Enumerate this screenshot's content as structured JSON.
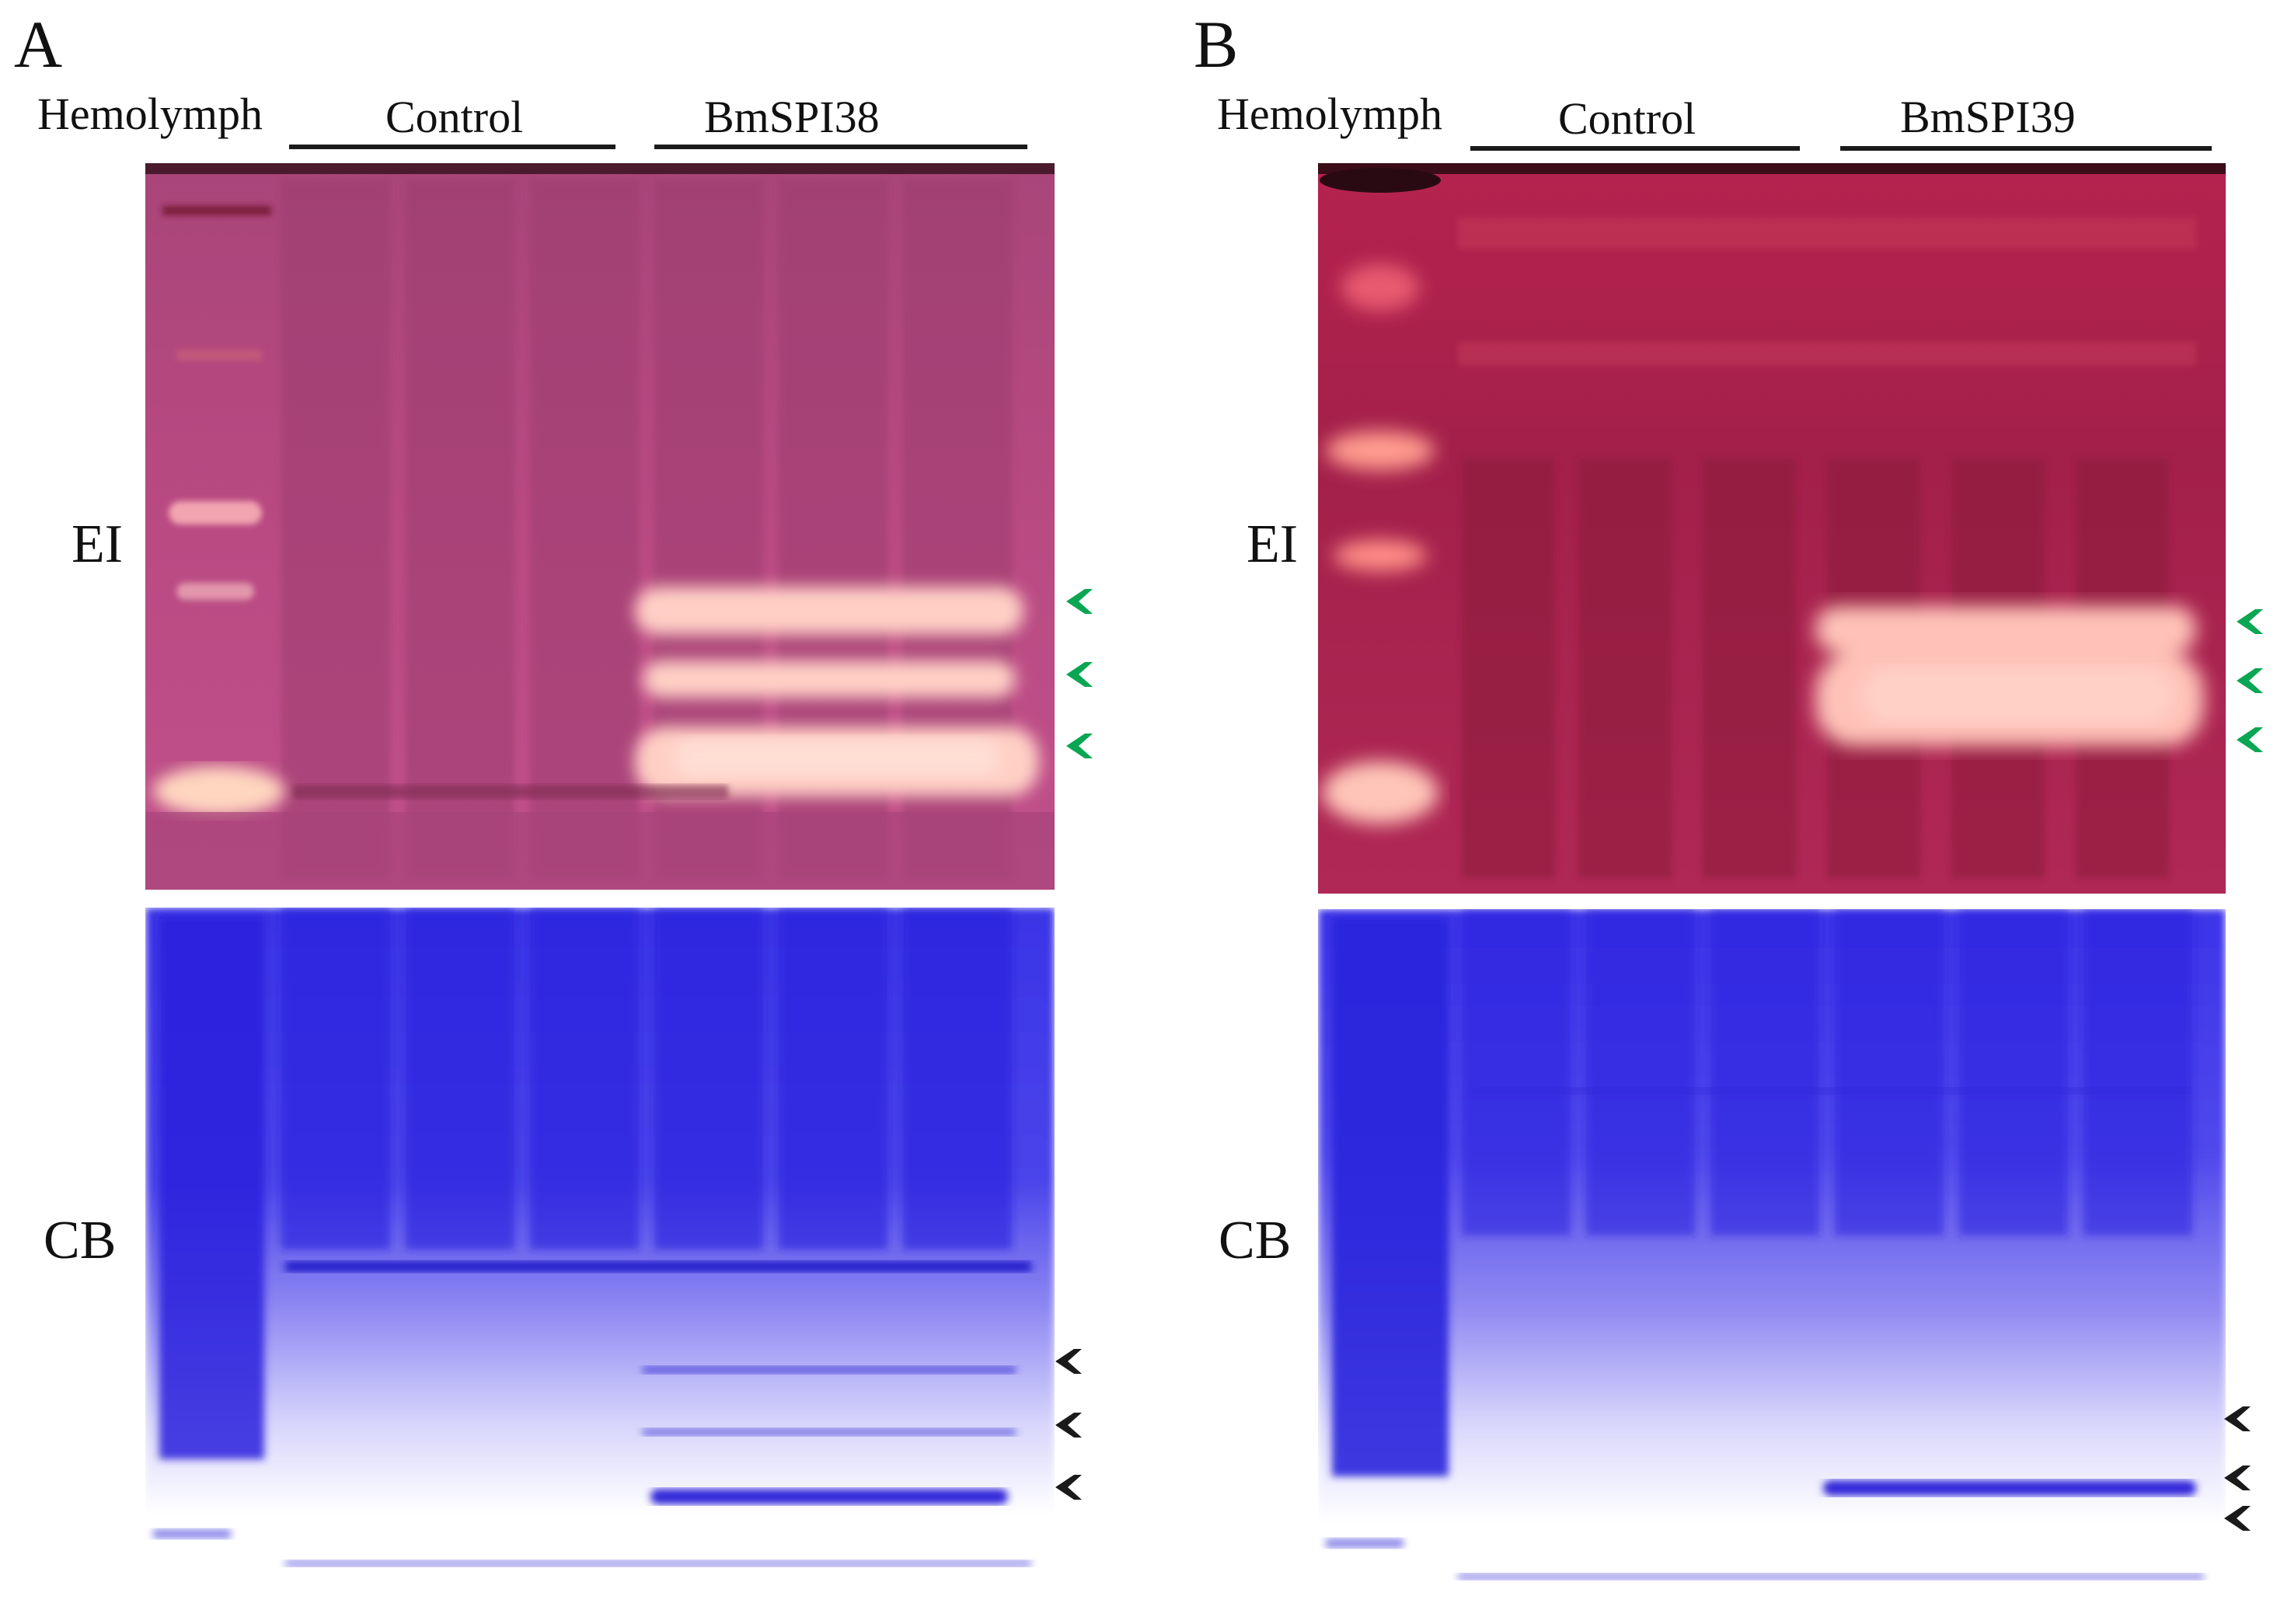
{
  "panels": [
    {
      "letter": "A",
      "lane_label": "Hemolymph",
      "group_control": "Control",
      "group_treatment": "BmSPI38",
      "row_top": "EI",
      "row_bottom": "CB"
    },
    {
      "letter": "B",
      "lane_label": "Hemolymph",
      "group_control": "Control",
      "group_treatment": "BmSPI39",
      "row_top": "EI",
      "row_bottom": "CB"
    }
  ],
  "colors": {
    "ei_gel_a": "#b8487e",
    "ei_gel_b": "#a8214a",
    "cb_gel": "#3b33e8",
    "activity_band": "#ffd0c8",
    "green_arrow": "#0aa653",
    "black_arrow": "#1a1a1a"
  },
  "icons": {
    "green_arrow": "chevron-left-icon",
    "black_arrow": "chevron-left-icon"
  }
}
